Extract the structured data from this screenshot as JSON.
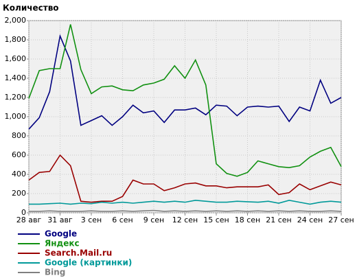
{
  "chart_data": {
    "type": "line",
    "title": "Количество",
    "categories": [
      "28 авг",
      null,
      null,
      "31 авг",
      null,
      null,
      "3 сен",
      null,
      null,
      "6 сен",
      null,
      null,
      "9 сен",
      null,
      null,
      "12 сен",
      null,
      null,
      "15 сен",
      null,
      null,
      "18 сен",
      null,
      null,
      "21 сен",
      null,
      null,
      "24 сен",
      null,
      null,
      "27 сен"
    ],
    "series": [
      {
        "name": "Google",
        "color": "#000080",
        "values": [
          870,
          990,
          1260,
          1840,
          1580,
          910,
          960,
          1010,
          910,
          1000,
          1120,
          1040,
          1060,
          940,
          1070,
          1070,
          1090,
          1020,
          1120,
          1110,
          1010,
          1100,
          1110,
          1100,
          1110,
          950,
          1100,
          1060,
          1380,
          1140,
          1200
        ]
      },
      {
        "name": "Яндекс",
        "color": "#109010",
        "values": [
          1190,
          1480,
          1500,
          1500,
          1960,
          1490,
          1240,
          1310,
          1320,
          1280,
          1270,
          1330,
          1350,
          1390,
          1530,
          1400,
          1590,
          1330,
          510,
          410,
          380,
          420,
          540,
          510,
          480,
          470,
          490,
          580,
          640,
          680,
          480
        ]
      },
      {
        "name": "Search.Mail.ru",
        "color": "#990000",
        "values": [
          340,
          420,
          430,
          600,
          490,
          120,
          110,
          120,
          120,
          170,
          340,
          300,
          300,
          230,
          260,
          300,
          310,
          280,
          280,
          260,
          270,
          270,
          270,
          290,
          190,
          210,
          300,
          240,
          280,
          320,
          290
        ]
      },
      {
        "name": "Google (картинки)",
        "color": "#009999",
        "values": [
          90,
          90,
          95,
          100,
          90,
          100,
          95,
          110,
          100,
          110,
          100,
          110,
          120,
          110,
          120,
          110,
          130,
          120,
          110,
          110,
          120,
          115,
          110,
          120,
          100,
          130,
          110,
          90,
          110,
          120,
          110
        ]
      },
      {
        "name": "Bing",
        "color": "#808080",
        "values": [
          15,
          15,
          20,
          15,
          15,
          15,
          20,
          15,
          15,
          20,
          15,
          20,
          25,
          15,
          20,
          15,
          20,
          15,
          20,
          15,
          20,
          15,
          20,
          15,
          20,
          15,
          20,
          15,
          15,
          20,
          15
        ]
      }
    ],
    "ylim": [
      0,
      2000
    ],
    "yticks": [
      0,
      200,
      400,
      600,
      800,
      {
        "value": 1000,
        "label": "1,000"
      },
      {
        "value": 1200,
        "label": "1,200"
      },
      {
        "value": 1400,
        "label": "1,400"
      },
      {
        "value": 1600,
        "label": "1,600"
      },
      {
        "value": 1800,
        "label": "1,800"
      },
      {
        "value": 2000,
        "label": "2,000"
      }
    ],
    "grid": true
  }
}
